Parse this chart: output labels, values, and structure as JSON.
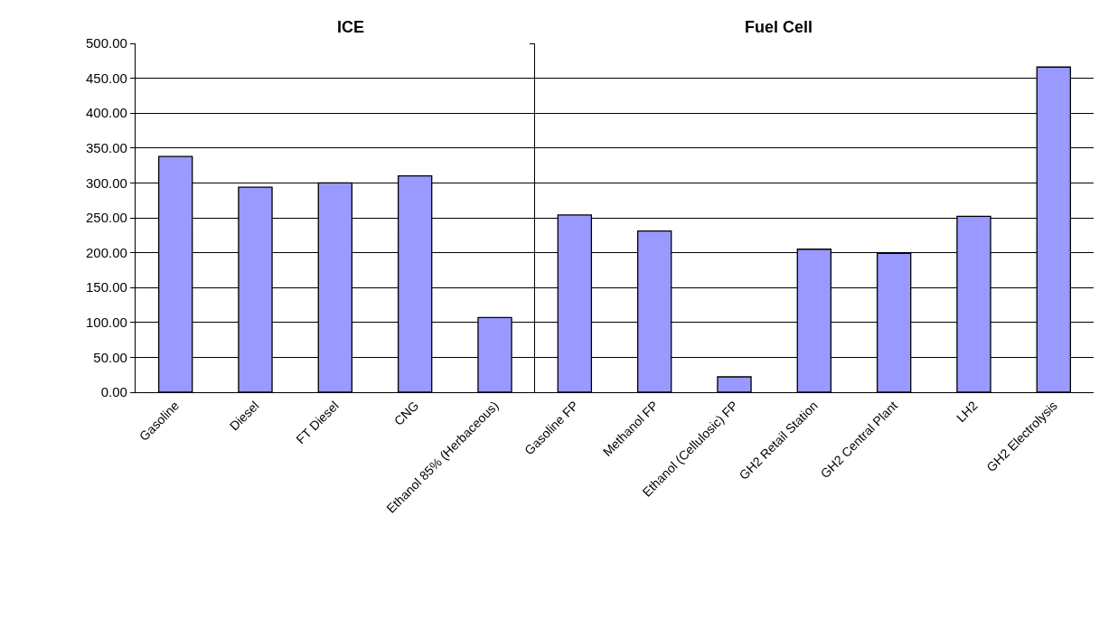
{
  "chart_data": [
    {
      "type": "bar",
      "title": "ICE",
      "categories": [
        "Gasoline",
        "Diesel",
        "FT Diesel",
        "CNG",
        "Ethanol 85% (Herbaceous)"
      ],
      "values": [
        338,
        294,
        300,
        310,
        107
      ],
      "color": "#9999ff",
      "ylim": [
        0,
        500
      ],
      "yticks": [
        {
          "value": 0,
          "label": "0.00"
        },
        {
          "value": 50,
          "label": "50.00"
        },
        {
          "value": 100,
          "label": "100.00"
        },
        {
          "value": 150,
          "label": "150.00"
        },
        {
          "value": 200,
          "label": "200.00"
        },
        {
          "value": 250,
          "label": "250.00"
        },
        {
          "value": 300,
          "label": "300.00"
        },
        {
          "value": 350,
          "label": "350.00"
        },
        {
          "value": 400,
          "label": "400.00"
        },
        {
          "value": 450,
          "label": "450.00"
        },
        {
          "value": 500,
          "label": "500.00"
        }
      ],
      "grid": "y"
    },
    {
      "type": "bar",
      "title": "Fuel Cell",
      "categories": [
        "Gasoline FP",
        "Methanol FP",
        "Ethanol (Cellulosic) FP",
        "GH2 Retail Station",
        "GH2 Central Plant",
        "LH2",
        "GH2 Electrolysis"
      ],
      "values": [
        254,
        231,
        22,
        205,
        199,
        252,
        466
      ],
      "color": "#9999ff",
      "ylim": [
        0,
        500
      ],
      "yticks": [
        {
          "value": 0,
          "label": null
        },
        {
          "value": 50,
          "label": null
        },
        {
          "value": 100,
          "label": null
        },
        {
          "value": 150,
          "label": null
        },
        {
          "value": 200,
          "label": null
        },
        {
          "value": 250,
          "label": null
        },
        {
          "value": 300,
          "label": null
        },
        {
          "value": 350,
          "label": null
        },
        {
          "value": 400,
          "label": null
        },
        {
          "value": 450,
          "label": null
        },
        {
          "value": 500,
          "label": null
        }
      ],
      "grid": "y",
      "tick_labels": "x"
    }
  ]
}
